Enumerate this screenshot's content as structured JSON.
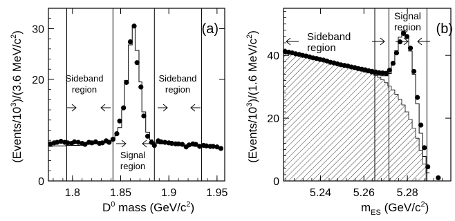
{
  "chart_data": [
    {
      "type": "scatter",
      "panel_label": "(a)",
      "xlabel_main": "D",
      "xlabel_sup": "0",
      "xlabel_rest": " mass (GeV/c",
      "xlabel_sup2": "2",
      "xlabel_end": ")",
      "ylabel_a": "(Events/10",
      "ylabel_sup1": "3",
      "ylabel_b": ")/(3.6 MeV/c",
      "ylabel_sup2": "2",
      "ylabel_c": ")",
      "xlim": [
        1.775,
        1.958
      ],
      "ylim": [
        0,
        34
      ],
      "x_ticks": [
        1.8,
        1.85,
        1.9,
        1.95
      ],
      "x_tick_labels": [
        "1.8",
        "1.85",
        "1.9",
        "1.95"
      ],
      "y_ticks": [
        0,
        20,
        30
      ],
      "y_tick_labels": [
        "0",
        "20",
        "30"
      ],
      "region_lines_x": [
        1.794,
        1.842,
        1.885,
        1.934
      ],
      "annotations": {
        "sideband_left": [
          "Sideband",
          "region"
        ],
        "sideband_right": [
          "Sideband",
          "region"
        ],
        "signal": [
          "Signal",
          "region"
        ]
      },
      "data_points": {
        "x": [
          1.777,
          1.781,
          1.784,
          1.788,
          1.792,
          1.795,
          1.799,
          1.802,
          1.806,
          1.81,
          1.813,
          1.817,
          1.82,
          1.824,
          1.828,
          1.831,
          1.835,
          1.838,
          1.842,
          1.846,
          1.849,
          1.853,
          1.856,
          1.86,
          1.864,
          1.867,
          1.871,
          1.874,
          1.878,
          1.882,
          1.885,
          1.889,
          1.892,
          1.896,
          1.9,
          1.903,
          1.907,
          1.91,
          1.914,
          1.918,
          1.921,
          1.925,
          1.928,
          1.932,
          1.936,
          1.939,
          1.943,
          1.946,
          1.95,
          1.954
        ],
        "y": [
          7.3,
          7.5,
          7.6,
          7.8,
          7.6,
          7.5,
          7.4,
          7.7,
          7.6,
          7.4,
          7.2,
          7.6,
          7.5,
          7.7,
          7.4,
          7.5,
          7.9,
          7.6,
          8.2,
          9.3,
          11.8,
          14.4,
          19.4,
          27.4,
          30.5,
          23.3,
          18.5,
          12.8,
          8.8,
          7.6,
          7.0,
          7.9,
          7.7,
          7.6,
          7.5,
          7.4,
          7.3,
          7.3,
          7.2,
          6.7,
          7.1,
          7.3,
          7.2,
          6.8,
          7.0,
          6.9,
          6.8,
          6.8,
          6.7,
          6.4
        ]
      },
      "fit_histogram": {
        "edges": [
          1.775,
          1.779,
          1.782,
          1.786,
          1.789,
          1.793,
          1.797,
          1.8,
          1.804,
          1.808,
          1.811,
          1.815,
          1.818,
          1.822,
          1.826,
          1.829,
          1.833,
          1.836,
          1.84,
          1.844,
          1.847,
          1.851,
          1.854,
          1.858,
          1.862,
          1.865,
          1.869,
          1.872,
          1.876,
          1.88,
          1.883,
          1.887,
          1.89,
          1.894,
          1.898,
          1.901,
          1.905,
          1.908,
          1.912,
          1.916,
          1.919,
          1.923,
          1.926,
          1.93,
          1.934,
          1.937,
          1.941,
          1.944,
          1.948,
          1.952,
          1.955
        ],
        "values": [
          6.8,
          6.9,
          6.9,
          6.9,
          6.9,
          7.0,
          7.0,
          7.0,
          7.0,
          7.1,
          7.1,
          7.2,
          7.2,
          7.3,
          7.3,
          7.4,
          7.5,
          7.6,
          8.0,
          8.9,
          10.5,
          14.0,
          19.8,
          26.8,
          30.3,
          25.7,
          19.5,
          13.6,
          9.6,
          8.1,
          7.6,
          7.4,
          7.3,
          7.3,
          7.2,
          7.2,
          7.1,
          7.1,
          7.0,
          7.0,
          6.9,
          6.9,
          6.8,
          6.8,
          6.8,
          6.7,
          6.7,
          6.7,
          6.6,
          6.6
        ]
      }
    },
    {
      "type": "scatter",
      "panel_label": "(b)",
      "xlabel_main": "m",
      "xlabel_sub": "ES",
      "xlabel_rest": " (GeV/c",
      "xlabel_sup2": "2",
      "xlabel_end": ")",
      "ylabel_a": "(Events/10",
      "ylabel_sup1": "3",
      "ylabel_b": ")/(1.6 MeV/c",
      "ylabel_sup2": "2",
      "ylabel_c": ")",
      "xlim": [
        5.223,
        5.3
      ],
      "ylim": [
        0,
        55
      ],
      "x_ticks": [
        5.24,
        5.26,
        5.28
      ],
      "x_tick_labels": [
        "5.24",
        "5.26",
        "5.28"
      ],
      "y_ticks": [
        0,
        20,
        40
      ],
      "y_tick_labels": [
        "0",
        "20",
        "40"
      ],
      "region_lines_x": [
        5.265,
        5.2715,
        5.289
      ],
      "annotations": {
        "sideband": [
          "Sideband",
          "region"
        ],
        "signal": [
          "Signal",
          "region"
        ]
      },
      "data_points": {
        "x": [
          5.2238,
          5.2254,
          5.227,
          5.2286,
          5.2302,
          5.2318,
          5.2334,
          5.235,
          5.2366,
          5.2382,
          5.2398,
          5.2414,
          5.243,
          5.2446,
          5.2462,
          5.2478,
          5.2494,
          5.251,
          5.2526,
          5.2542,
          5.2558,
          5.2574,
          5.259,
          5.2606,
          5.2622,
          5.2638,
          5.2654,
          5.267,
          5.2686,
          5.2702,
          5.2718,
          5.2734,
          5.275,
          5.2766,
          5.2782,
          5.2798,
          5.2814,
          5.283,
          5.2846,
          5.2862,
          5.2878,
          5.2894,
          5.2942
        ],
        "y": [
          41.2,
          41.0,
          40.8,
          40.5,
          40.3,
          40.0,
          39.8,
          39.5,
          39.2,
          39.0,
          38.7,
          38.5,
          38.2,
          37.8,
          37.6,
          37.3,
          37.0,
          36.8,
          36.6,
          36.3,
          36.1,
          35.8,
          35.6,
          35.4,
          35.1,
          34.9,
          34.7,
          34.5,
          34.4,
          34.3,
          35.3,
          37.5,
          40.8,
          44.3,
          47.0,
          46.0,
          42.3,
          34.9,
          26.6,
          17.8,
          10.6,
          4.5,
          1.0
        ]
      },
      "fit_histogram": {
        "edges": [
          5.223,
          5.2246,
          5.2262,
          5.2278,
          5.2294,
          5.231,
          5.2326,
          5.2342,
          5.2358,
          5.2374,
          5.239,
          5.2406,
          5.2422,
          5.2438,
          5.2454,
          5.247,
          5.2486,
          5.2502,
          5.2518,
          5.2534,
          5.255,
          5.2566,
          5.2582,
          5.2598,
          5.2614,
          5.263,
          5.2646,
          5.2662,
          5.2678,
          5.2694,
          5.271,
          5.2726,
          5.2742,
          5.2758,
          5.2774,
          5.279,
          5.2806,
          5.2822,
          5.2838,
          5.2854,
          5.287,
          5.2886,
          5.2902
        ],
        "values": [
          41.0,
          40.8,
          40.5,
          40.3,
          40.0,
          39.8,
          39.5,
          39.3,
          39.0,
          38.7,
          38.5,
          38.2,
          37.9,
          37.6,
          37.3,
          37.0,
          36.8,
          36.5,
          36.2,
          35.9,
          35.6,
          35.3,
          35.0,
          34.7,
          34.4,
          34.1,
          33.9,
          33.7,
          33.5,
          33.5,
          34.2,
          37.0,
          41.5,
          45.8,
          47.8,
          46.2,
          41.4,
          34.0,
          24.6,
          15.2,
          7.8,
          2.6
        ],
        "background": [
          41.0,
          40.8,
          40.5,
          40.3,
          40.0,
          39.8,
          39.5,
          39.3,
          39.0,
          38.7,
          38.5,
          38.2,
          37.9,
          37.6,
          37.3,
          37.0,
          36.8,
          36.5,
          36.2,
          35.9,
          35.6,
          35.3,
          35.0,
          34.7,
          34.4,
          34.1,
          33.6,
          33.0,
          32.2,
          31.3,
          30.2,
          29.0,
          27.6,
          26.0,
          24.2,
          22.0,
          19.6,
          16.8,
          13.6,
          9.8,
          5.4,
          0.0
        ]
      }
    }
  ]
}
